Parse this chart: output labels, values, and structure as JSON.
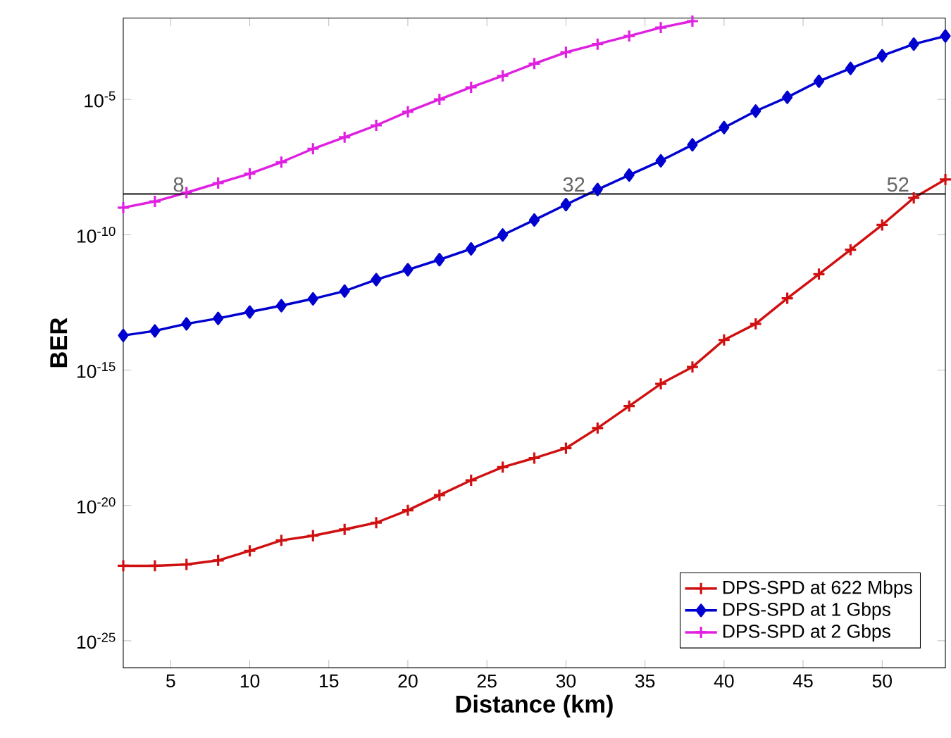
{
  "chart_data": {
    "type": "line",
    "xlabel": "Distance (km)",
    "ylabel": "BER",
    "x": [
      2,
      4,
      6,
      8,
      10,
      12,
      14,
      16,
      18,
      20,
      22,
      24,
      26,
      28,
      30,
      32,
      34,
      36,
      38,
      40,
      42,
      44,
      46,
      48,
      50,
      52,
      54
    ],
    "series": [
      {
        "name": "DPS-SPD at 622 Mbps",
        "color": "#d01010",
        "marker": "cross",
        "values": [
          5.9e-23,
          5.9e-23,
          6.6e-23,
          9.3e-23,
          2.1e-22,
          5.1e-22,
          7.6e-22,
          1.3e-21,
          2.3e-21,
          6.6e-21,
          2.4e-20,
          8.5e-20,
          2.6e-19,
          5.6e-19,
          1.3e-18,
          7.2e-18,
          4.7e-17,
          3.1e-16,
          1.3e-15,
          1.3e-14,
          5.1e-14,
          4.5e-13,
          3.5e-12,
          2.8e-11,
          2.3e-10,
          2.3e-09,
          1.1e-08
        ]
      },
      {
        "name": "DPS-SPD at 1 Gbps",
        "color": "#0000d0",
        "marker": "diamond",
        "values": [
          1.9e-14,
          2.8e-14,
          5.1e-14,
          8.1e-14,
          1.4e-13,
          2.4e-13,
          4.3e-13,
          8.3e-13,
          2.2e-12,
          5.1e-12,
          1.2e-11,
          3e-11,
          9.8e-11,
          3.5e-10,
          1.3e-09,
          4.7e-09,
          1.6e-08,
          5.4e-08,
          2.1e-07,
          9.1e-07,
          3.7e-06,
          1.2e-05,
          4.7e-05,
          0.00014,
          0.00041,
          0.0011,
          0.0022
        ]
      },
      {
        "name": "DPS-SPD at 2 Gbps",
        "color": "#e020e0",
        "marker": "cross",
        "values": [
          1e-09,
          1.7e-09,
          3.6e-09,
          8.1e-09,
          1.8e-08,
          4.8e-08,
          1.5e-07,
          4e-07,
          1.1e-06,
          3.5e-06,
          1e-05,
          2.8e-05,
          7.4e-05,
          0.00021,
          0.00055,
          0.0011,
          0.0022,
          0.0045,
          0.0078,
          null,
          null,
          null,
          null,
          null,
          null,
          null,
          null
        ]
      }
    ],
    "log": "y",
    "xlim": [
      2,
      54
    ],
    "ylim": [
      1e-26,
      0.01
    ],
    "xticks": [
      5,
      10,
      15,
      20,
      25,
      30,
      35,
      40,
      45,
      50
    ],
    "yticks": [
      {
        "value": 1e-25,
        "label": "10$^{-25}$"
      },
      {
        "value": 1e-20,
        "label": "10$^{-20}$"
      },
      {
        "value": 1e-15,
        "label": "10$^{-15}$"
      },
      {
        "value": 1e-10,
        "label": "10$^{-10}$"
      },
      {
        "value": 1e-05,
        "label": "10$^{-5}$"
      }
    ],
    "ref_lines": [
      {
        "axis": "y",
        "value": 3.2e-09,
        "color": "#000000"
      }
    ],
    "annotations": [
      {
        "text": "8",
        "x": 5.5,
        "y": 3.2e-09
      },
      {
        "text": "32",
        "x": 30.5,
        "y": 3.2e-09
      },
      {
        "text": "52",
        "x": 51,
        "y": 3.2e-09
      }
    ],
    "legend": "bottom right",
    "grid": false,
    "line_style": "solid"
  }
}
